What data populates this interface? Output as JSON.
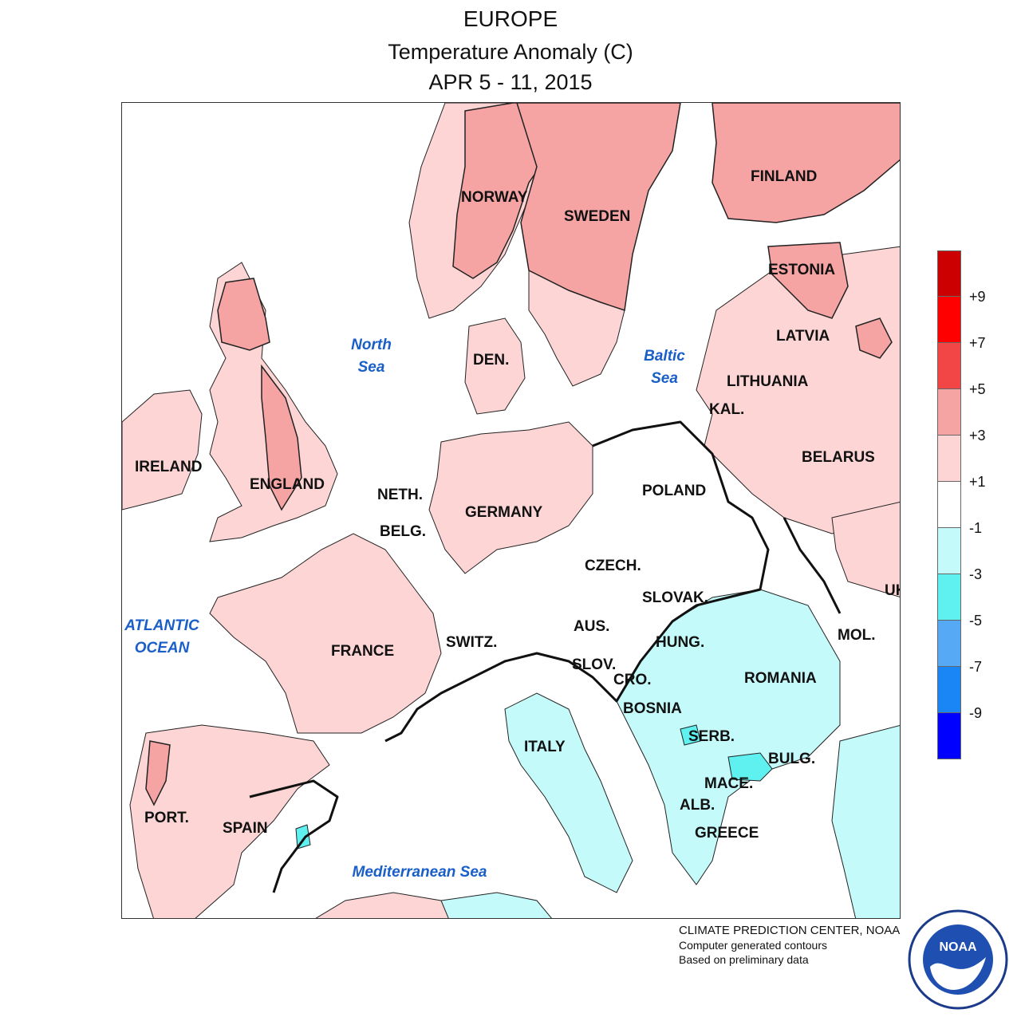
{
  "titles": {
    "region": "EUROPE",
    "variable": "Temperature Anomaly (C)",
    "period": "APR 5 - 11, 2015"
  },
  "colors": {
    "anom_plus1_3": "#fdd5d5",
    "anom_plus3_5": "#f6a3a3",
    "anom_minus1_3": "#c4fafa",
    "anom_minus3_5": "#5ff0f0",
    "land_neutral": "#ffffff",
    "outline": "#222222"
  },
  "countries": [
    "FINLAND",
    "NORWAY",
    "SWEDEN",
    "ESTONIA",
    "LATVIA",
    "DEN.",
    "LITHUANIA",
    "KAL.",
    "BELARUS",
    "IRELAND",
    "ENGLAND",
    "NETH.",
    "GERMANY",
    "POLAND",
    "BELG.",
    "CZECH.",
    "SLOVAK.",
    "UK",
    "FRANCE",
    "SWITZ.",
    "AUS.",
    "HUNG.",
    "MOL.",
    "SLOV.",
    "CRO.",
    "ROMANIA",
    "BOSNIA",
    "SERB.",
    "ITALY",
    "BULG.",
    "MACE.",
    "ALB.",
    "PORT.",
    "SPAIN",
    "GREECE"
  ],
  "seas": {
    "north": [
      "North",
      "Sea"
    ],
    "baltic": [
      "Baltic",
      "Sea"
    ],
    "atlantic": [
      "ATLANTIC",
      "OCEAN"
    ],
    "med": "Mediterranean Sea"
  },
  "legend": {
    "colors": [
      "#cc0000",
      "#ff0000",
      "#f24646",
      "#f6a3a3",
      "#fdd5d5",
      "#ffffff",
      "#c4fafa",
      "#5ff0f0",
      "#55a9f5",
      "#1a85f5",
      "#0000ff"
    ],
    "ticks": [
      "+9",
      "+7",
      "+5",
      "+3",
      "+1",
      "-1",
      "-3",
      "-5",
      "-7",
      "-9"
    ]
  },
  "credits": [
    "CLIMATE PREDICTION CENTER, NOAA",
    "Computer generated contours",
    "Based on preliminary data"
  ],
  "logo": "NOAA"
}
